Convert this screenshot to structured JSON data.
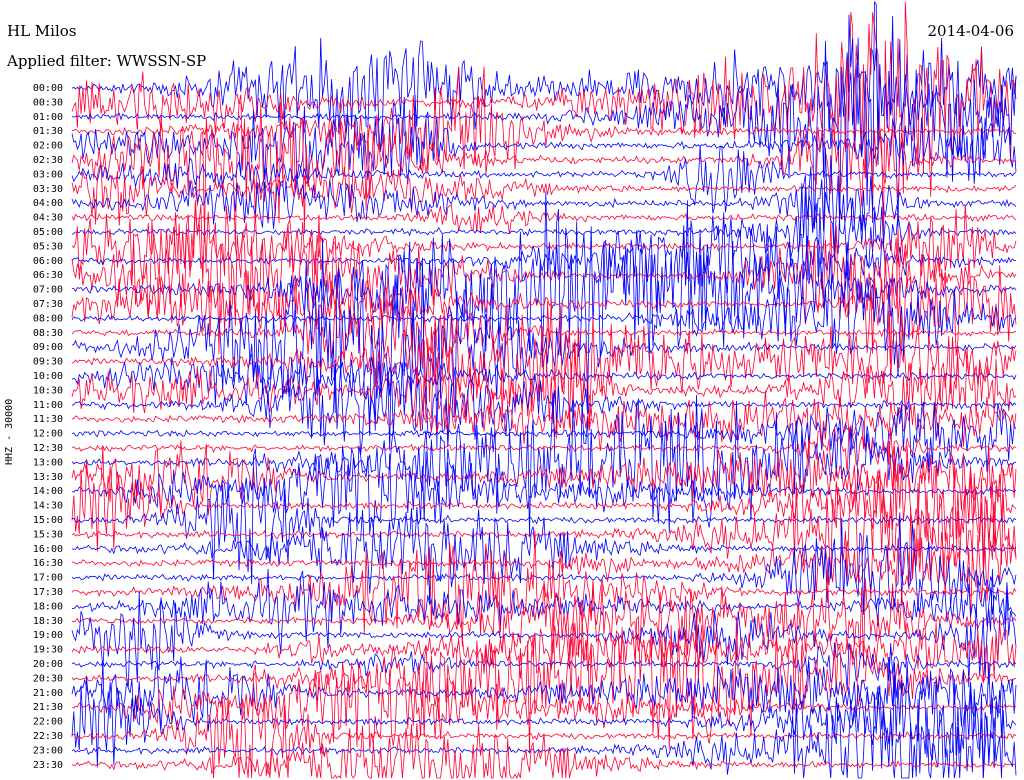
{
  "header": {
    "station": "HL Milos",
    "date": "2014-04-06",
    "filter_label": "Applied filter: WWSSN-SP"
  },
  "chart_data": {
    "type": "line",
    "title": "HL Milos",
    "subtitle": "Applied filter: WWSSN-SP",
    "ylabel": "HHZ - 30000",
    "xlabel": "",
    "grid": false,
    "legend": "none",
    "colors": [
      "#0000ff",
      "#ff0033"
    ],
    "trace_length_minutes": 30,
    "row_labels": [
      "00:00",
      "00:30",
      "01:00",
      "01:30",
      "02:00",
      "02:30",
      "03:00",
      "03:30",
      "04:00",
      "04:30",
      "05:00",
      "05:30",
      "06:00",
      "06:30",
      "07:00",
      "07:30",
      "08:00",
      "08:30",
      "09:00",
      "09:30",
      "10:00",
      "10:30",
      "11:00",
      "11:30",
      "12:00",
      "12:30",
      "13:00",
      "13:30",
      "14:00",
      "14:30",
      "15:00",
      "15:30",
      "16:00",
      "16:30",
      "17:00",
      "17:30",
      "18:00",
      "18:30",
      "19:00",
      "19:30",
      "20:00",
      "20:30",
      "21:00",
      "21:30",
      "22:00",
      "22:30",
      "23:00",
      "23:30"
    ]
  }
}
